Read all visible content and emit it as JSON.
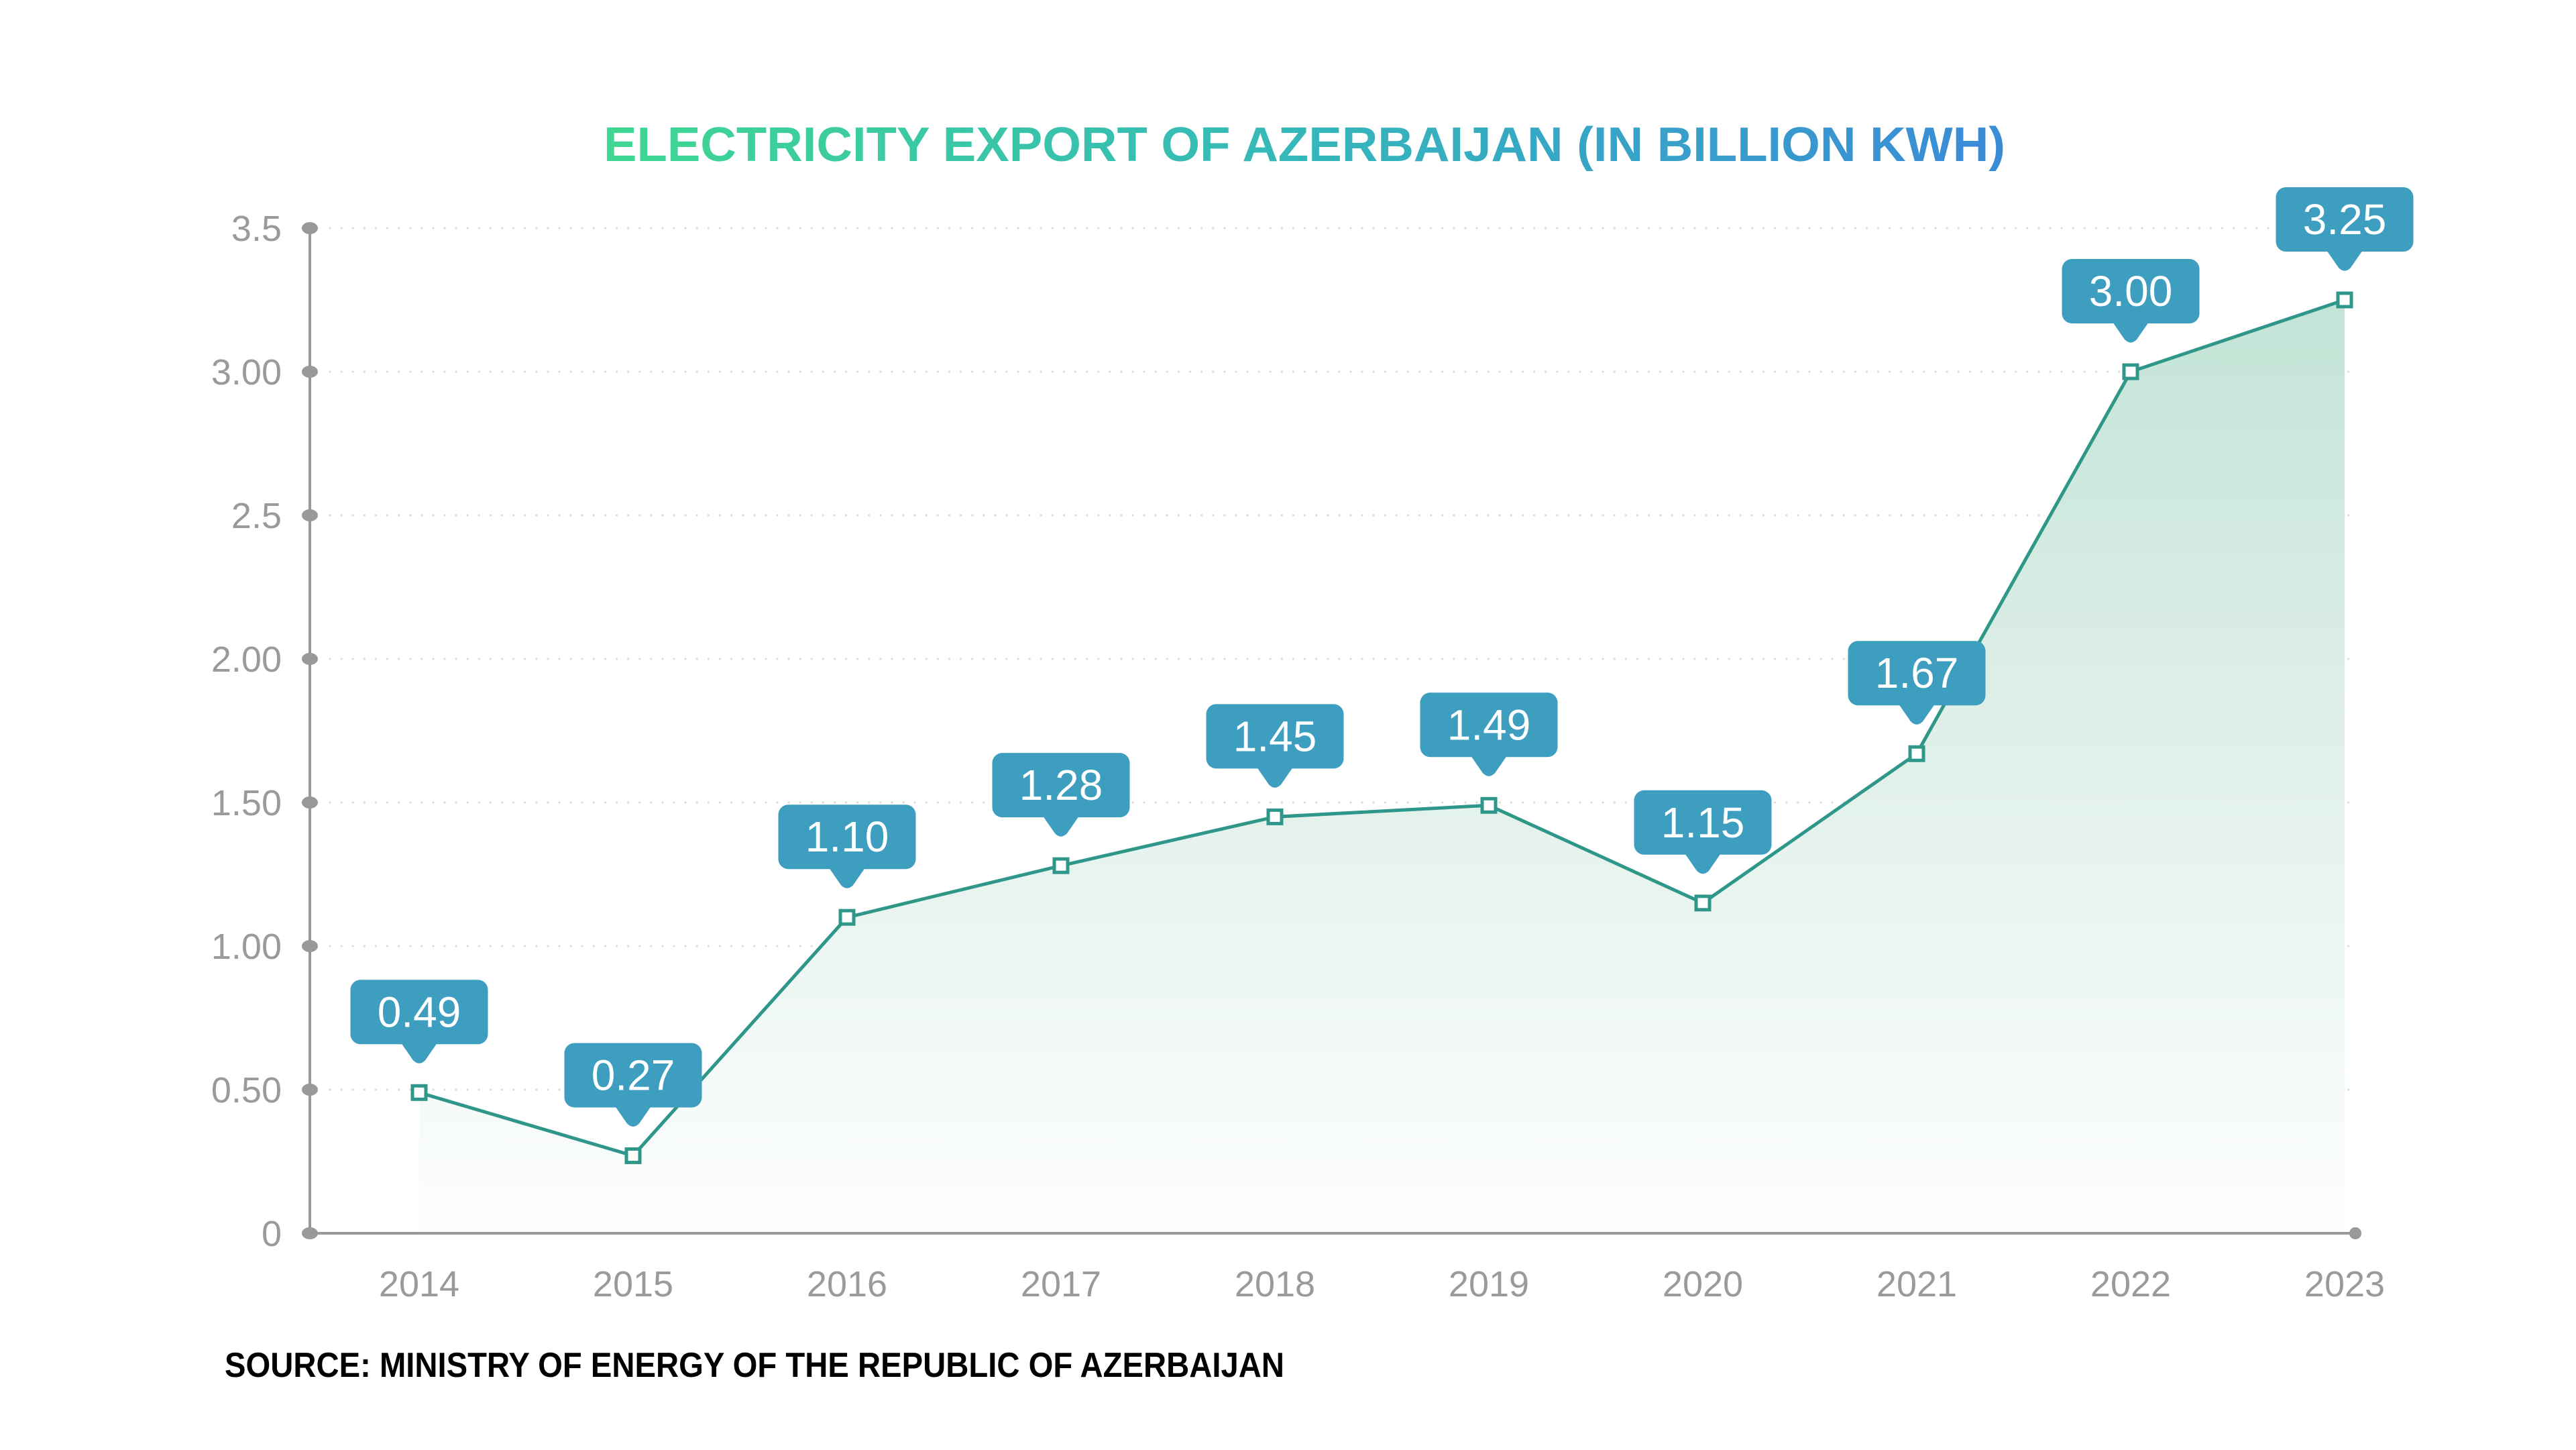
{
  "title": "ELECTRICITY EXPORT OF AZERBAIJAN (IN BILLION KWH)",
  "source": "SOURCE: MINISTRY OF ENERGY OF THE REPUBLIC OF AZERBAIJAN",
  "colors": {
    "title_gradient_start": "#3FD792",
    "title_gradient_mid": "#35B7BA",
    "title_gradient_end": "#3A8BD7",
    "badge_fill": "#3D9EC0",
    "badge_text": "#FFFFFF",
    "line": "#2F968A",
    "marker_fill": "#FFFFFF",
    "area_top": "#C2E4D6",
    "area_mid": "#DFEFE8",
    "area_bottom": "#FDFEFE",
    "axis": "#999999",
    "tick_label": "#9A9A9A",
    "gridline": "#D9DDDC",
    "source_text": "#8E8E8E"
  },
  "chart_data": {
    "type": "area",
    "title": "ELECTRICITY EXPORT OF AZERBAIJAN (IN BILLION KWH)",
    "categories": [
      "2014",
      "2015",
      "2016",
      "2017",
      "2018",
      "2019",
      "2020",
      "2021",
      "2022",
      "2023"
    ],
    "values": [
      0.49,
      0.27,
      1.1,
      1.28,
      1.45,
      1.49,
      1.15,
      1.67,
      3.0,
      3.25
    ],
    "value_labels": [
      "0.49",
      "0.27",
      "1.10",
      "1.28",
      "1.45",
      "1.49",
      "1.15",
      "1.67",
      "3.00",
      "3.25"
    ],
    "xlabel": "",
    "ylabel": "",
    "ylim": [
      0,
      3.5
    ],
    "y_tick_values": [
      0,
      0.5,
      1.0,
      1.5,
      2.0,
      2.5,
      3.0,
      3.5
    ],
    "y_tick_labels": [
      "0",
      "0.50",
      "1.00",
      "1.50",
      "2.00",
      "2.5",
      "3.00",
      "3.5"
    ],
    "grid": "horizontal-dotted",
    "legend_position": "none",
    "annotation_style": "tooltip-badge-above-each-point",
    "caption": "SOURCE: MINISTRY OF ENERGY OF THE REPUBLIC OF AZERBAIJAN"
  }
}
